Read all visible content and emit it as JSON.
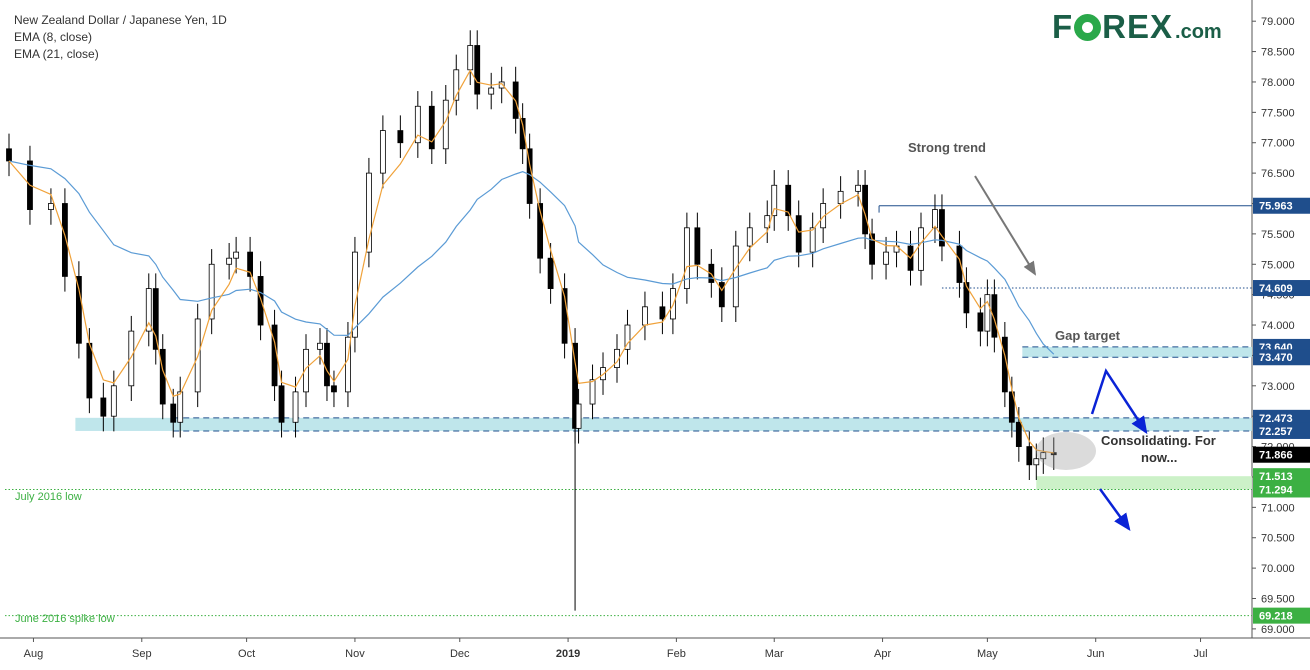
{
  "legend": {
    "symbol": "New Zealand Dollar / Japanese Yen, 1D",
    "ema_fast": "EMA (8, close)",
    "ema_slow": "EMA (21, close)"
  },
  "logo": {
    "part1": "F",
    "part2": "REX",
    "part3": ".com"
  },
  "chart_data": {
    "type": "candlestick",
    "ylim": [
      68.85,
      79.25
    ],
    "y_ticks": [
      "79.000",
      "78.500",
      "78.000",
      "77.500",
      "77.000",
      "76.500",
      "76.000",
      "75.500",
      "75.000",
      "74.500",
      "74.000",
      "73.500",
      "73.000",
      "72.500",
      "72.000",
      "71.500",
      "71.000",
      "70.500",
      "70.000",
      "69.500",
      "69.000"
    ],
    "x_ticks": [
      "Aug",
      "Sep",
      "Oct",
      "Nov",
      "Dec",
      "2019",
      "Feb",
      "Mar",
      "Apr",
      "May",
      "Jun",
      "Jul"
    ],
    "price_series": [
      {
        "date": "2018-07-25",
        "close": 76.7
      },
      {
        "date": "2018-07-31",
        "close": 75.9
      },
      {
        "date": "2018-08-06",
        "close": 76.0
      },
      {
        "date": "2018-08-10",
        "close": 74.8
      },
      {
        "date": "2018-08-14",
        "close": 73.7
      },
      {
        "date": "2018-08-17",
        "close": 72.8
      },
      {
        "date": "2018-08-21",
        "close": 72.5
      },
      {
        "date": "2018-08-24",
        "close": 73.0
      },
      {
        "date": "2018-08-29",
        "close": 73.9
      },
      {
        "date": "2018-09-03",
        "close": 74.6
      },
      {
        "date": "2018-09-05",
        "close": 73.6
      },
      {
        "date": "2018-09-07",
        "close": 72.7
      },
      {
        "date": "2018-09-10",
        "close": 72.4
      },
      {
        "date": "2018-09-12",
        "close": 72.9
      },
      {
        "date": "2018-09-17",
        "close": 74.1
      },
      {
        "date": "2018-09-21",
        "close": 75.0
      },
      {
        "date": "2018-09-26",
        "close": 75.1
      },
      {
        "date": "2018-09-28",
        "close": 75.2
      },
      {
        "date": "2018-10-02",
        "close": 74.8
      },
      {
        "date": "2018-10-05",
        "close": 74.0
      },
      {
        "date": "2018-10-09",
        "close": 73.0
      },
      {
        "date": "2018-10-11",
        "close": 72.4
      },
      {
        "date": "2018-10-15",
        "close": 72.9
      },
      {
        "date": "2018-10-18",
        "close": 73.6
      },
      {
        "date": "2018-10-22",
        "close": 73.7
      },
      {
        "date": "2018-10-24",
        "close": 73.0
      },
      {
        "date": "2018-10-26",
        "close": 72.9
      },
      {
        "date": "2018-10-30",
        "close": 73.8
      },
      {
        "date": "2018-11-01",
        "close": 75.2
      },
      {
        "date": "2018-11-05",
        "close": 76.5
      },
      {
        "date": "2018-11-09",
        "close": 77.2
      },
      {
        "date": "2018-11-14",
        "close": 77.0
      },
      {
        "date": "2018-11-19",
        "close": 77.6
      },
      {
        "date": "2018-11-23",
        "close": 76.9
      },
      {
        "date": "2018-11-27",
        "close": 77.7
      },
      {
        "date": "2018-11-30",
        "close": 78.2
      },
      {
        "date": "2018-12-04",
        "close": 78.6
      },
      {
        "date": "2018-12-06",
        "close": 77.8
      },
      {
        "date": "2018-12-10",
        "close": 77.9
      },
      {
        "date": "2018-12-13",
        "close": 78.0
      },
      {
        "date": "2018-12-17",
        "close": 77.4
      },
      {
        "date": "2018-12-19",
        "close": 76.9
      },
      {
        "date": "2018-12-21",
        "close": 76.0
      },
      {
        "date": "2018-12-24",
        "close": 75.1
      },
      {
        "date": "2018-12-27",
        "close": 74.6
      },
      {
        "date": "2018-12-31",
        "close": 73.7
      },
      {
        "date": "2019-01-03",
        "close": 72.3
      },
      {
        "date": "2019-01-04",
        "close": 72.7
      },
      {
        "date": "2019-01-08",
        "close": 73.1
      },
      {
        "date": "2019-01-11",
        "close": 73.3
      },
      {
        "date": "2019-01-15",
        "close": 73.6
      },
      {
        "date": "2019-01-18",
        "close": 74.0
      },
      {
        "date": "2019-01-23",
        "close": 74.3
      },
      {
        "date": "2019-01-28",
        "close": 74.1
      },
      {
        "date": "2019-01-31",
        "close": 74.6
      },
      {
        "date": "2019-02-04",
        "close": 75.6
      },
      {
        "date": "2019-02-07",
        "close": 75.0
      },
      {
        "date": "2019-02-11",
        "close": 74.7
      },
      {
        "date": "2019-02-14",
        "close": 74.3
      },
      {
        "date": "2019-02-18",
        "close": 75.3
      },
      {
        "date": "2019-02-22",
        "close": 75.6
      },
      {
        "date": "2019-02-27",
        "close": 75.8
      },
      {
        "date": "2019-03-01",
        "close": 76.3
      },
      {
        "date": "2019-03-05",
        "close": 75.8
      },
      {
        "date": "2019-03-08",
        "close": 75.2
      },
      {
        "date": "2019-03-12",
        "close": 75.6
      },
      {
        "date": "2019-03-15",
        "close": 76.0
      },
      {
        "date": "2019-03-20",
        "close": 76.2
      },
      {
        "date": "2019-03-25",
        "close": 76.3
      },
      {
        "date": "2019-03-27",
        "close": 75.5
      },
      {
        "date": "2019-03-29",
        "close": 75.0
      },
      {
        "date": "2019-04-02",
        "close": 75.2
      },
      {
        "date": "2019-04-05",
        "close": 75.3
      },
      {
        "date": "2019-04-09",
        "close": 74.9
      },
      {
        "date": "2019-04-12",
        "close": 75.6
      },
      {
        "date": "2019-04-16",
        "close": 75.9
      },
      {
        "date": "2019-04-18",
        "close": 75.3
      },
      {
        "date": "2019-04-23",
        "close": 74.7
      },
      {
        "date": "2019-04-25",
        "close": 74.2
      },
      {
        "date": "2019-04-29",
        "close": 73.9
      },
      {
        "date": "2019-05-01",
        "close": 74.5
      },
      {
        "date": "2019-05-03",
        "close": 73.8
      },
      {
        "date": "2019-05-06",
        "close": 72.9
      },
      {
        "date": "2019-05-08",
        "close": 72.4
      },
      {
        "date": "2019-05-10",
        "close": 72.0
      },
      {
        "date": "2019-05-13",
        "close": 71.7
      },
      {
        "date": "2019-05-15",
        "close": 71.8
      },
      {
        "date": "2019-05-17",
        "close": 71.9
      },
      {
        "date": "2019-05-20",
        "close": 71.866
      }
    ],
    "flash_crash": {
      "date": "2019-01-03",
      "low": 69.3
    },
    "levels": [
      {
        "label": "75.963",
        "value": 75.963,
        "style": "solid",
        "color": "#1f4e8c"
      },
      {
        "label": "74.609",
        "value": 74.609,
        "style": "dotted",
        "color": "#1f4e8c"
      },
      {
        "label": "73.640",
        "value": 73.64,
        "style": "dashed",
        "color": "#1f4e8c"
      },
      {
        "label": "73.470",
        "value": 73.47,
        "style": "dashed",
        "color": "#1f4e8c"
      },
      {
        "label": "72.473",
        "value": 72.473,
        "style": "dashed",
        "color": "#1f4e8c"
      },
      {
        "label": "72.257",
        "value": 72.257,
        "style": "dashed",
        "color": "#1f4e8c"
      },
      {
        "label": "71.513",
        "value": 71.513,
        "style": "none",
        "color": "#3cb043"
      },
      {
        "label": "71.294",
        "value": 71.294,
        "style": "dotted",
        "color": "#3cb043"
      },
      {
        "label": "69.218",
        "value": 69.218,
        "style": "dotted",
        "color": "#3cb043"
      }
    ],
    "last_price": {
      "label": "71.866",
      "value": 71.866
    },
    "annotations": {
      "strong_trend": "Strong trend",
      "gap_target": "Gap target",
      "consolidating_1": "Consolidating. For",
      "consolidating_2": "now...",
      "july_low": "July 2016 low",
      "june_low": "June 2016 spike low"
    },
    "colors": {
      "ema_fast": "#f0a23a",
      "ema_slow": "#5b9bd5",
      "candles": "#000000",
      "zone": "#b8e3e9",
      "green_zone": "#c6efc2",
      "arrows": "#0a23d6"
    }
  }
}
